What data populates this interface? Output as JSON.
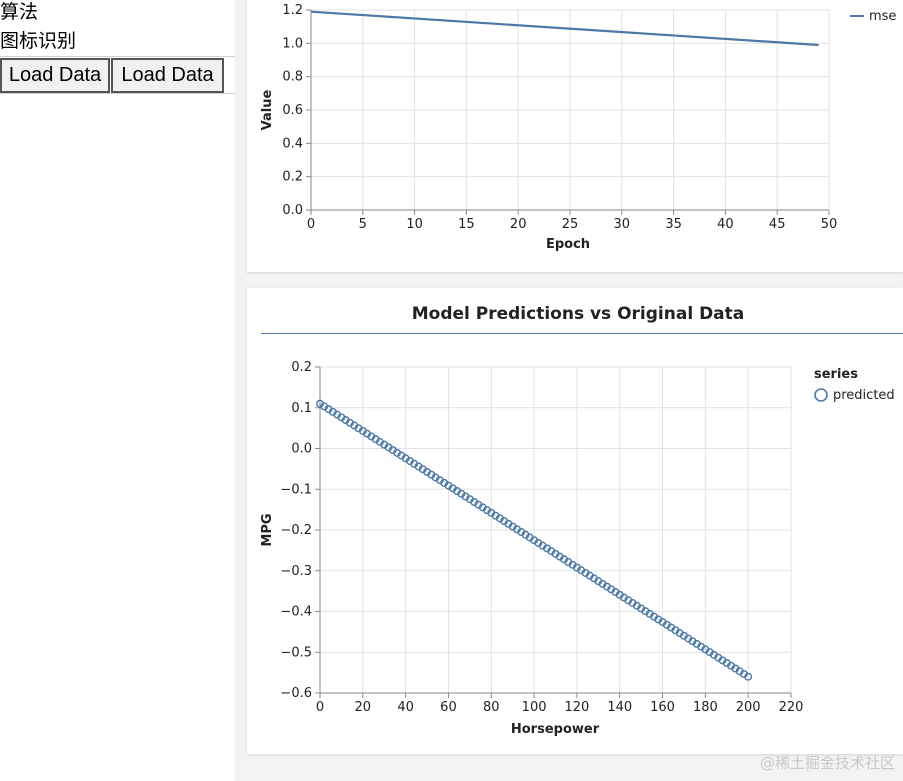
{
  "left_panel": {
    "line1": "算法",
    "line2": "图标识别",
    "buttons": [
      "Load Data",
      "Load Data"
    ]
  },
  "loss_chart": {
    "legend_label": "mse",
    "chart_data": {
      "type": "line",
      "xlabel": "Epoch",
      "ylabel": "Value",
      "xlim": [
        0,
        50
      ],
      "ylim": [
        0,
        1.2
      ],
      "xticks": [
        "0",
        "5",
        "10",
        "15",
        "20",
        "25",
        "30",
        "35",
        "40",
        "45",
        "50"
      ],
      "yticks": [
        "0.0",
        "0.2",
        "0.4",
        "0.6",
        "0.8",
        "1.0",
        "1.2"
      ],
      "series": [
        {
          "name": "mse",
          "x": [
            0,
            49
          ],
          "y": [
            1.19,
            0.99
          ]
        }
      ],
      "grid": true,
      "legend_position": "top-right",
      "color": "#4c78a8"
    }
  },
  "prediction_chart": {
    "title": "Model Predictions vs Original Data",
    "legend_title": "series",
    "legend_label": "predicted",
    "chart_data": {
      "type": "scatter",
      "title": "Model Predictions vs Original Data",
      "xlabel": "Horsepower",
      "ylabel": "MPG",
      "xlim": [
        0,
        220
      ],
      "ylim": [
        -0.6,
        0.2
      ],
      "xticks": [
        "0",
        "20",
        "40",
        "60",
        "80",
        "100",
        "120",
        "140",
        "160",
        "180",
        "200",
        "220"
      ],
      "yticks": [
        "−0.6",
        "−0.5",
        "−0.4",
        "−0.3",
        "−0.2",
        "−0.1",
        "0.0",
        "0.1",
        "0.2"
      ],
      "series": [
        {
          "name": "predicted",
          "x_start": 0,
          "x_end": 200,
          "count": 101,
          "y_start": 0.11,
          "y_end": -0.56
        }
      ],
      "grid": true,
      "legend_position": "top-right",
      "color": "#4c78a8"
    }
  },
  "watermark": "@稀土掘金技术社区"
}
